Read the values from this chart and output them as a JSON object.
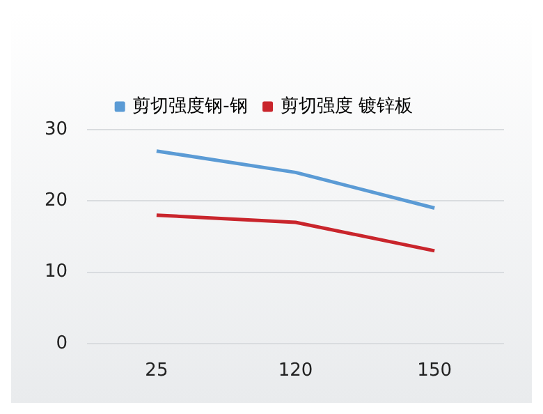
{
  "chart_data": {
    "type": "line",
    "categories": [
      "25",
      "120",
      "150"
    ],
    "series": [
      {
        "name": "剪切强度钢-钢",
        "color": "#5b9bd5",
        "values": [
          27,
          24,
          19
        ]
      },
      {
        "name": "剪切强度 镀锌板",
        "color": "#c9252c",
        "values": [
          18,
          17,
          13
        ]
      }
    ],
    "ylim": [
      0,
      30
    ],
    "yticks": [
      0,
      10,
      20,
      30
    ],
    "grid": "y",
    "legend": "top",
    "marker": "none",
    "line_style": "solid"
  }
}
